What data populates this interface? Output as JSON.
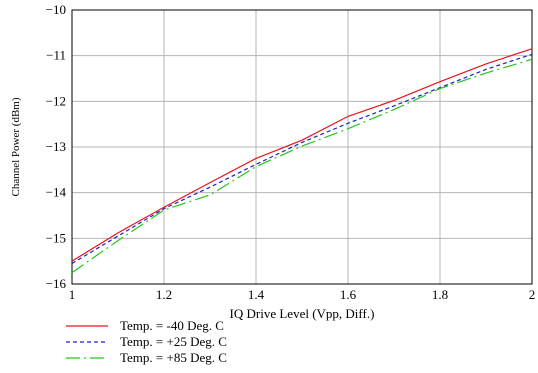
{
  "chart_data": {
    "type": "line",
    "xlabel": "IQ Drive Level (Vpp, Diff.)",
    "ylabel": "Channel Power (dBm)",
    "xlim": [
      1,
      2
    ],
    "ylim": [
      -16,
      -10
    ],
    "xticks": [
      1,
      1.2,
      1.4,
      1.6,
      1.8,
      2
    ],
    "yticks": [
      -10,
      -11,
      -12,
      -13,
      -14,
      -15,
      -16
    ],
    "xtick_labels": [
      "1",
      "1.2",
      "1.4",
      "1.6",
      "1.8",
      "2"
    ],
    "ytick_labels": [
      "−10",
      "−11",
      "−12",
      "−13",
      "−14",
      "−15",
      "−16"
    ],
    "grid": true,
    "legend_position": "bottom-left, below plot",
    "series": [
      {
        "name": "Temp. = -40 Deg. C",
        "color": "#e8141b",
        "dash": "solid",
        "x": [
          1.0,
          1.1,
          1.2,
          1.3,
          1.4,
          1.5,
          1.6,
          1.7,
          1.8,
          1.9,
          2.0
        ],
        "y": [
          -15.5,
          -14.88,
          -14.32,
          -13.78,
          -13.25,
          -12.85,
          -12.33,
          -11.98,
          -11.57,
          -11.18,
          -10.85
        ]
      },
      {
        "name": "Temp. = +25 Deg. C",
        "color": "#1a22c8",
        "dash": "dotted",
        "x": [
          1.0,
          1.1,
          1.2,
          1.3,
          1.4,
          1.5,
          1.6,
          1.7,
          1.8,
          1.9,
          2.0
        ],
        "y": [
          -15.55,
          -14.95,
          -14.35,
          -13.88,
          -13.38,
          -12.9,
          -12.48,
          -12.1,
          -11.7,
          -11.3,
          -10.97
        ]
      },
      {
        "name": "Temp. = +85 Deg. C",
        "color": "#22c81a",
        "dash": "dashdot",
        "x": [
          1.0,
          1.1,
          1.2,
          1.3,
          1.4,
          1.5,
          1.6,
          1.7,
          1.8,
          1.9,
          2.0
        ],
        "y": [
          -15.75,
          -15.05,
          -14.38,
          -14.05,
          -13.43,
          -12.98,
          -12.6,
          -12.18,
          -11.72,
          -11.38,
          -11.08
        ]
      }
    ]
  }
}
